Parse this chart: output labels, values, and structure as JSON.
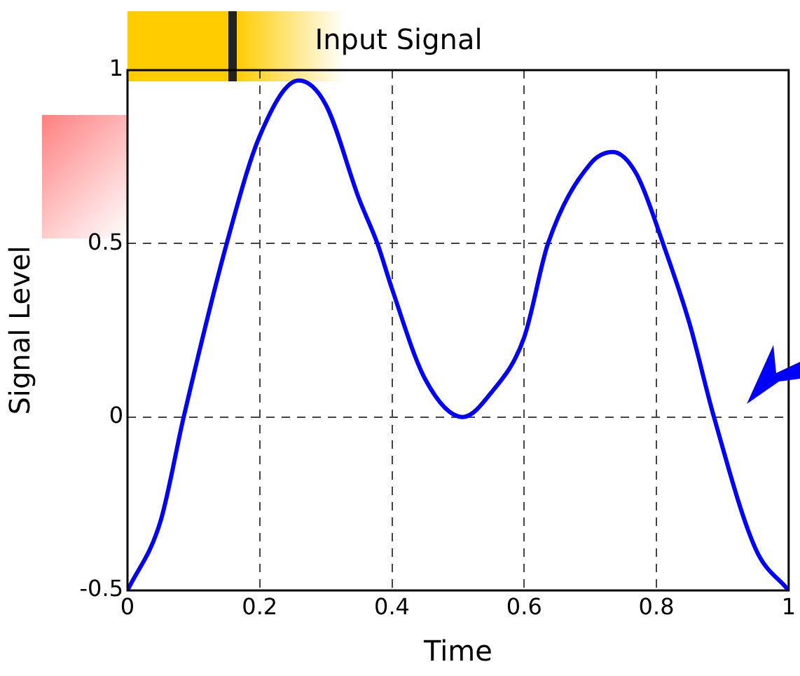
{
  "chart_data": {
    "type": "line",
    "title": "Input Signal",
    "xlabel": "Time",
    "ylabel": "Signal Level",
    "x": [
      0,
      0.05,
      0.085,
      0.15,
      0.2,
      0.259,
      0.3,
      0.35,
      0.378,
      0.4,
      0.45,
      0.507,
      0.55,
      0.6,
      0.636,
      0.7,
      0.734,
      0.77,
      0.81,
      0.85,
      0.887,
      0.95,
      1
    ],
    "series": [
      {
        "color": "#0000ff",
        "values": [
          -0.5,
          -0.3,
          0,
          0.5,
          0.81,
          0.97,
          0.9,
          0.63,
          0.5,
          0.37,
          0.11,
          0,
          0.07,
          0.23,
          0.5,
          0.73,
          0.764,
          0.7,
          0.5,
          0.27,
          0,
          -0.38,
          -0.5
        ]
      }
    ],
    "xlim": [
      0,
      1
    ],
    "ylim": [
      -0.5,
      1
    ],
    "xticks": [
      0,
      0.2,
      0.4,
      0.6,
      0.8,
      1
    ],
    "yticks": [
      -0.5,
      0,
      0.5,
      1
    ],
    "grid": true,
    "legend": false,
    "marker": "none",
    "line_style": "solid"
  }
}
